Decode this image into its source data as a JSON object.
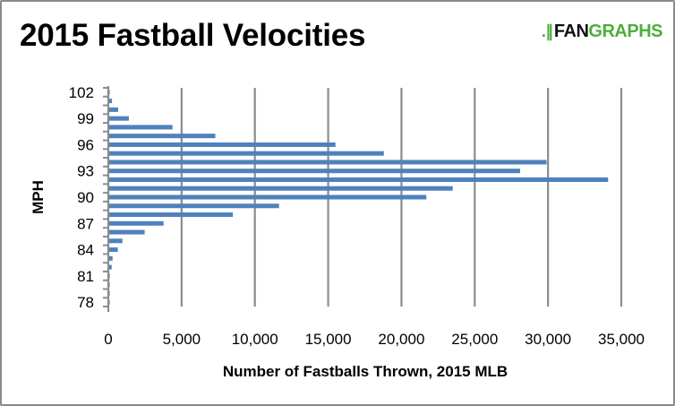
{
  "chart_data": {
    "type": "bar",
    "orientation": "horizontal",
    "title": "2015 Fastball Velocities",
    "xlabel": "Number of Fastballs Thrown, 2015 MLB",
    "ylabel": "MPH",
    "xlim": [
      0,
      35000
    ],
    "x_ticks": [
      "0",
      "5,000",
      "10,000",
      "15,000",
      "20,000",
      "25,000",
      "30,000",
      "35,000"
    ],
    "y_tick_labels": [
      "78",
      "81",
      "84",
      "87",
      "90",
      "93",
      "96",
      "99",
      "102"
    ],
    "categories": [
      78,
      79,
      80,
      81,
      82,
      83,
      84,
      85,
      86,
      87,
      88,
      89,
      90,
      91,
      92,
      93,
      94,
      95,
      96,
      97,
      98,
      99,
      100,
      101,
      102
    ],
    "values": [
      20,
      30,
      50,
      100,
      230,
      290,
      650,
      960,
      2480,
      3770,
      8500,
      11650,
      21700,
      23500,
      34100,
      28100,
      29900,
      18800,
      15500,
      7300,
      4380,
      1400,
      670,
      250,
      50
    ],
    "grid": "vertical",
    "legend": "none",
    "bar_color": "#4f81bd",
    "grid_color": "#8c8c8c"
  },
  "logo": {
    "mark": ".∥",
    "part1": "FAN",
    "part2": "GRAPHS",
    "color": "#4caf3a"
  }
}
